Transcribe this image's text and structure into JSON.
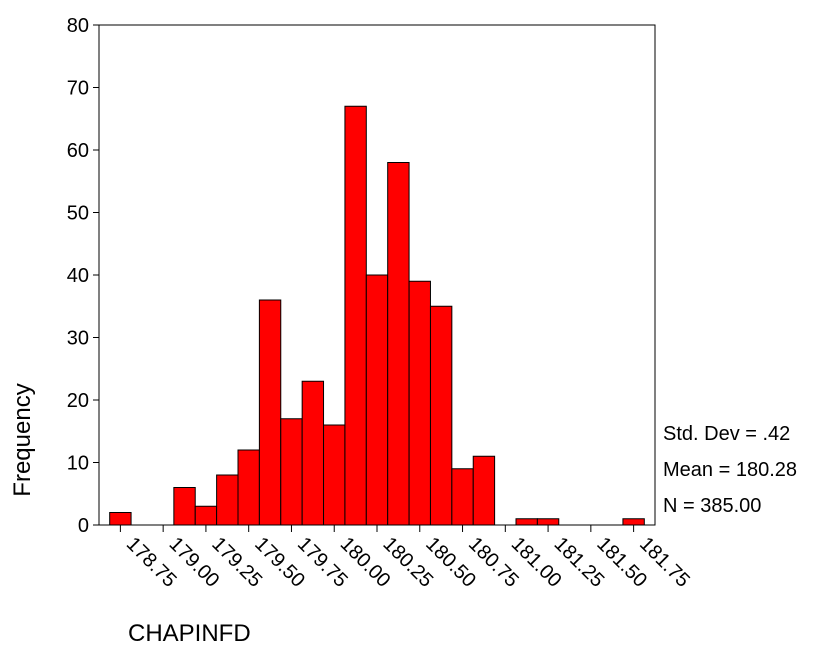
{
  "chart_data": {
    "type": "bar",
    "title": "",
    "xlabel": "CHAPINFD",
    "ylabel": "Frequency",
    "ylim": [
      0,
      80
    ],
    "yticks": [
      "0",
      "10",
      "20",
      "30",
      "40",
      "50",
      "60",
      "70",
      "80"
    ],
    "xlim": [
      178.625,
      181.875
    ],
    "xticks": [
      "178.75",
      "179.00",
      "179.25",
      "179.50",
      "179.75",
      "180.00",
      "180.25",
      "180.50",
      "180.75",
      "181.00",
      "181.25",
      "181.50",
      "181.75"
    ],
    "bar_color": "#ff0000",
    "bins": [
      {
        "x": 178.75,
        "value": 2
      },
      {
        "x": 178.875,
        "value": 0
      },
      {
        "x": 179.0,
        "value": 0
      },
      {
        "x": 179.125,
        "value": 6
      },
      {
        "x": 179.25,
        "value": 3
      },
      {
        "x": 179.375,
        "value": 8
      },
      {
        "x": 179.5,
        "value": 12
      },
      {
        "x": 179.625,
        "value": 36
      },
      {
        "x": 179.75,
        "value": 17
      },
      {
        "x": 179.875,
        "value": 23
      },
      {
        "x": 180.0,
        "value": 16
      },
      {
        "x": 180.125,
        "value": 67
      },
      {
        "x": 180.25,
        "value": 40
      },
      {
        "x": 180.375,
        "value": 58
      },
      {
        "x": 180.5,
        "value": 39
      },
      {
        "x": 180.625,
        "value": 35
      },
      {
        "x": 180.75,
        "value": 9
      },
      {
        "x": 180.875,
        "value": 11
      },
      {
        "x": 181.0,
        "value": 0
      },
      {
        "x": 181.125,
        "value": 1
      },
      {
        "x": 181.25,
        "value": 1
      },
      {
        "x": 181.375,
        "value": 0
      },
      {
        "x": 181.5,
        "value": 0
      },
      {
        "x": 181.625,
        "value": 0
      },
      {
        "x": 181.75,
        "value": 1
      }
    ],
    "stats": {
      "std_dev": "Std. Dev = .42",
      "mean": "Mean = 180.28",
      "n": "N = 385.00"
    }
  }
}
